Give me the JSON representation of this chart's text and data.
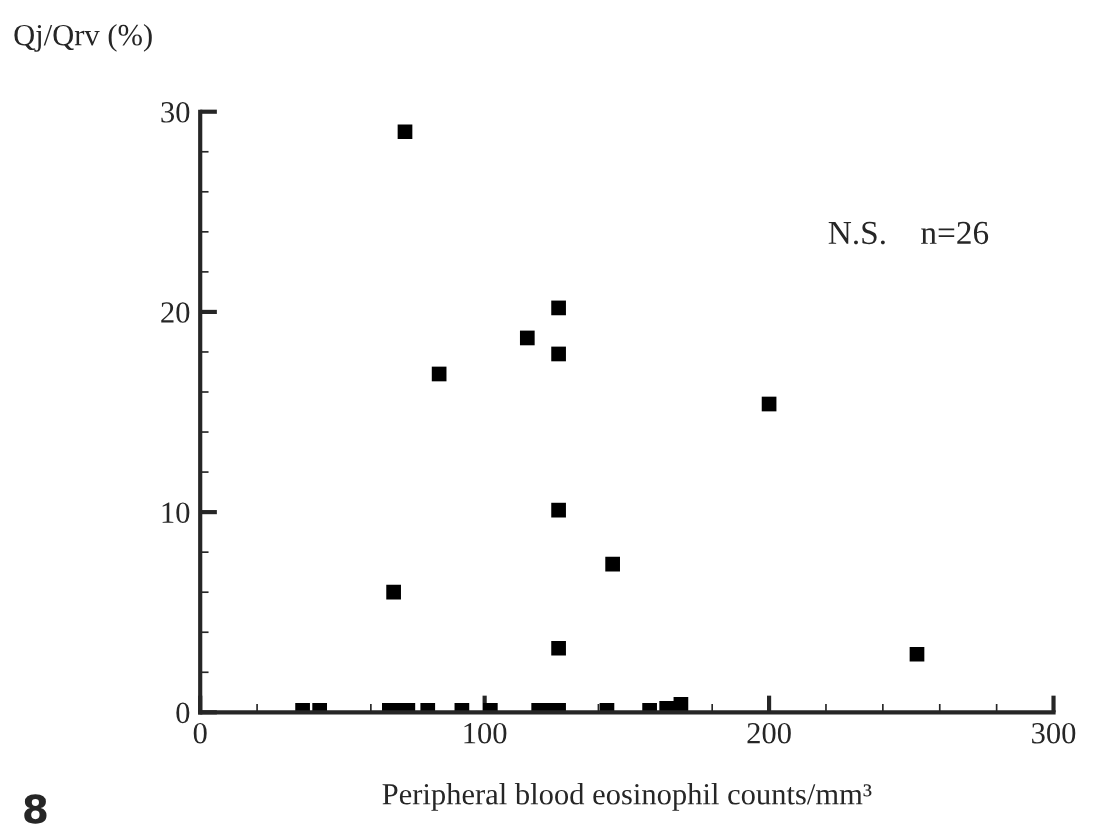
{
  "chart_data": {
    "type": "scatter",
    "xlabel": "Peripheral blood eosinophil counts/mm³",
    "ylabel": "Qj/Qrv (%)",
    "annotations": [
      {
        "text": "N.S.    n=26"
      },
      {
        "text": "8"
      }
    ],
    "x": [
      72,
      126,
      115,
      126,
      84,
      200,
      126,
      145,
      68,
      126,
      252,
      36,
      42,
      66.5,
      70,
      73,
      80,
      92,
      102,
      119,
      122,
      126,
      143,
      158,
      164,
      169
    ],
    "values": [
      29,
      20.2,
      18.7,
      17.9,
      16.9,
      15.4,
      10.1,
      7.4,
      6,
      3.2,
      2.9,
      0.1,
      0.1,
      0.1,
      0.1,
      0.1,
      0.1,
      0.1,
      0.1,
      0.1,
      0.1,
      0.1,
      0.1,
      0.1,
      0.2,
      0.4
    ],
    "color": "#000000",
    "marker": "square",
    "grid": false,
    "xlim": [
      0,
      300
    ],
    "xticks": [
      0,
      100,
      200,
      300
    ],
    "ylim": [
      0,
      30
    ],
    "yticks": [
      0,
      10,
      20,
      30
    ]
  }
}
